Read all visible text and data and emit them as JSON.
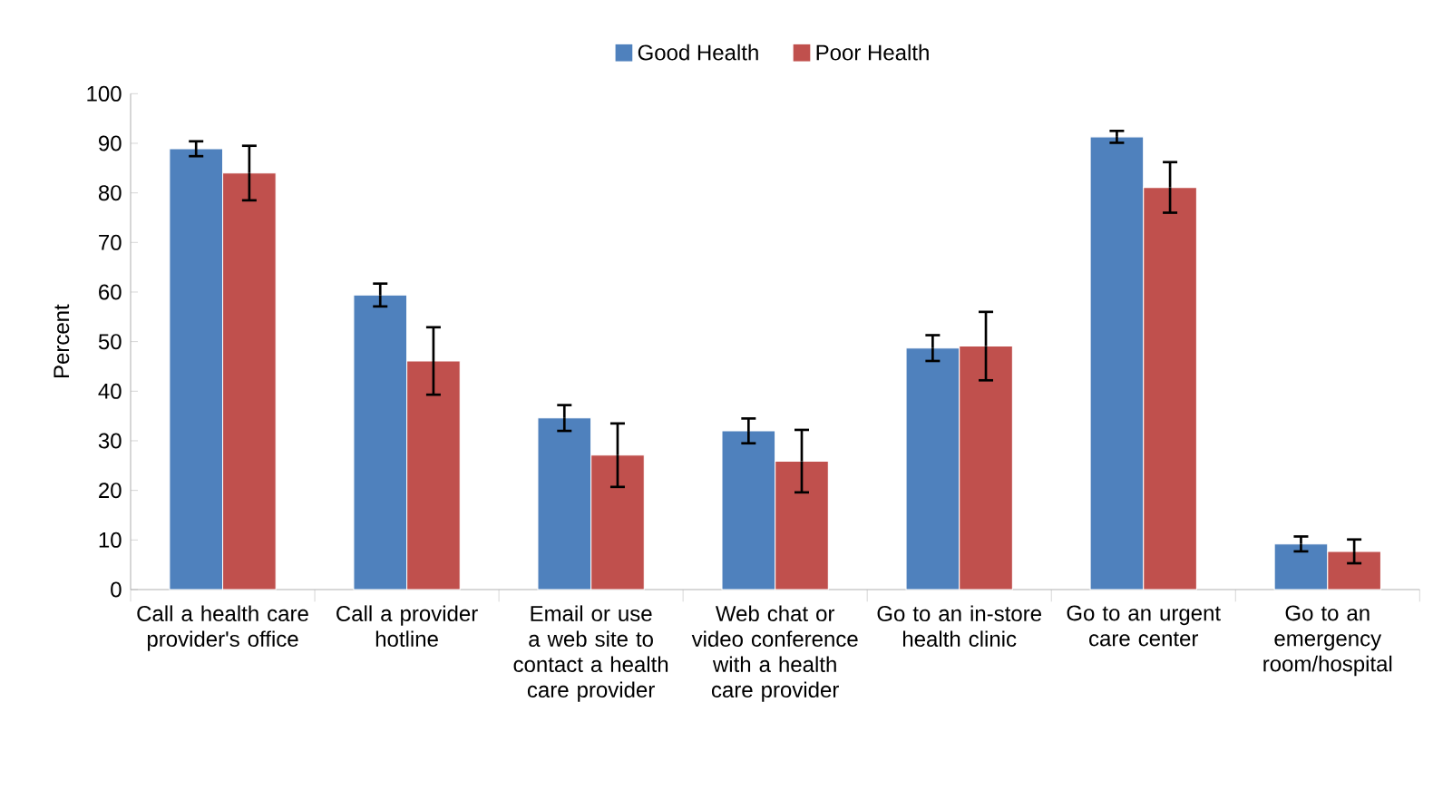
{
  "chart_data": {
    "type": "bar",
    "ylabel": "Percent",
    "categories": [
      "Call a health care provider's office",
      "Call a provider hotline",
      "Email or use a web site to contact a health care provider",
      "Web chat or video conference with a health care provider",
      "Go to an in-store health clinic",
      "Go to an urgent care center",
      "Go to an emergency room/hospital"
    ],
    "series": [
      {
        "name": "Good Health",
        "color": "#4f81bd",
        "values": [
          88.9,
          59.4,
          34.6,
          32.0,
          48.7,
          91.3,
          9.2
        ],
        "errors": [
          1.5,
          2.3,
          2.6,
          2.5,
          2.6,
          1.2,
          1.5
        ]
      },
      {
        "name": "Poor Health",
        "color": "#c0504d",
        "values": [
          84.0,
          46.1,
          27.1,
          25.9,
          49.1,
          81.1,
          7.7
        ],
        "errors": [
          5.5,
          6.8,
          6.4,
          6.3,
          6.9,
          5.1,
          2.4
        ]
      }
    ],
    "ylim": [
      0,
      100
    ],
    "yticks": [
      0,
      10,
      20,
      30,
      40,
      50,
      60,
      70,
      80,
      90,
      100
    ],
    "grid": false,
    "legend": "top"
  }
}
